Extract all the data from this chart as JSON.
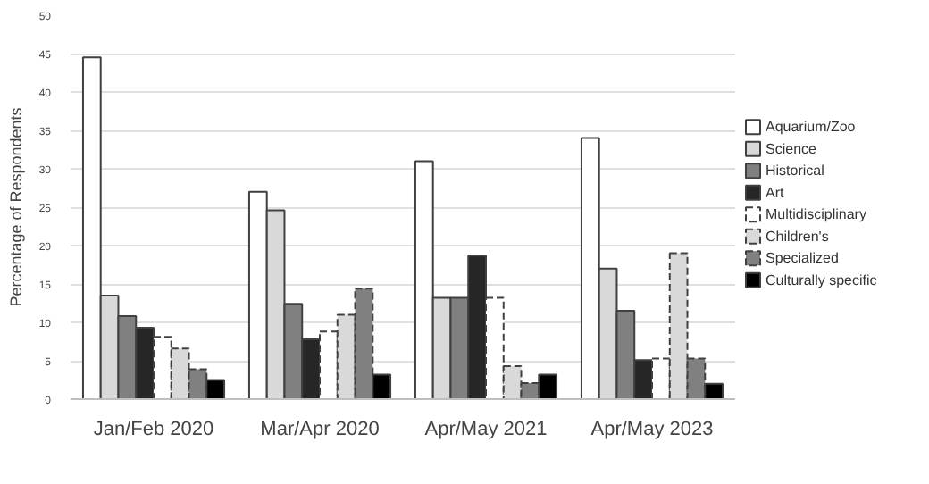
{
  "chart_data": {
    "type": "bar",
    "ylabel": "Percentage of Respondents",
    "categories": [
      "Jan/Feb 2020",
      "Mar/Apr 2020",
      "Apr/May 2021",
      "Apr/May 2023"
    ],
    "series": [
      {
        "name": "Aquarium/Zoo",
        "color": "#ffffff",
        "values": [
          44.5,
          27,
          31,
          34
        ]
      },
      {
        "name": "Science",
        "color": "#d9d9d9",
        "values": [
          13.5,
          24.6,
          13.2,
          17
        ]
      },
      {
        "name": "Historical",
        "color": "#808080",
        "values": [
          10.8,
          12.4,
          13.2,
          11.5
        ]
      },
      {
        "name": "Art",
        "color": "#262626",
        "values": [
          9.3,
          7.8,
          18.7,
          5.1
        ]
      },
      {
        "name": "Multidisciplinary",
        "color": "#ffffff",
        "line_style": "dashed",
        "values": [
          8.1,
          8.8,
          13.2,
          5.3
        ]
      },
      {
        "name": "Children's",
        "color": "#d9d9d9",
        "line_style": "dashed",
        "values": [
          6.6,
          11,
          4.3,
          19
        ]
      },
      {
        "name": "Specialized",
        "color": "#808080",
        "line_style": "dashed",
        "values": [
          3.9,
          14.4,
          2.1,
          5.3
        ]
      },
      {
        "name": "Culturally specific",
        "color": "#000000",
        "values": [
          2.5,
          3.2,
          3.2,
          2.0
        ]
      }
    ],
    "ylim": [
      0,
      50
    ],
    "yticks": [
      0,
      5,
      10,
      15,
      20,
      25,
      30,
      35,
      40,
      45,
      50
    ],
    "grid": "y",
    "legend": "right"
  }
}
